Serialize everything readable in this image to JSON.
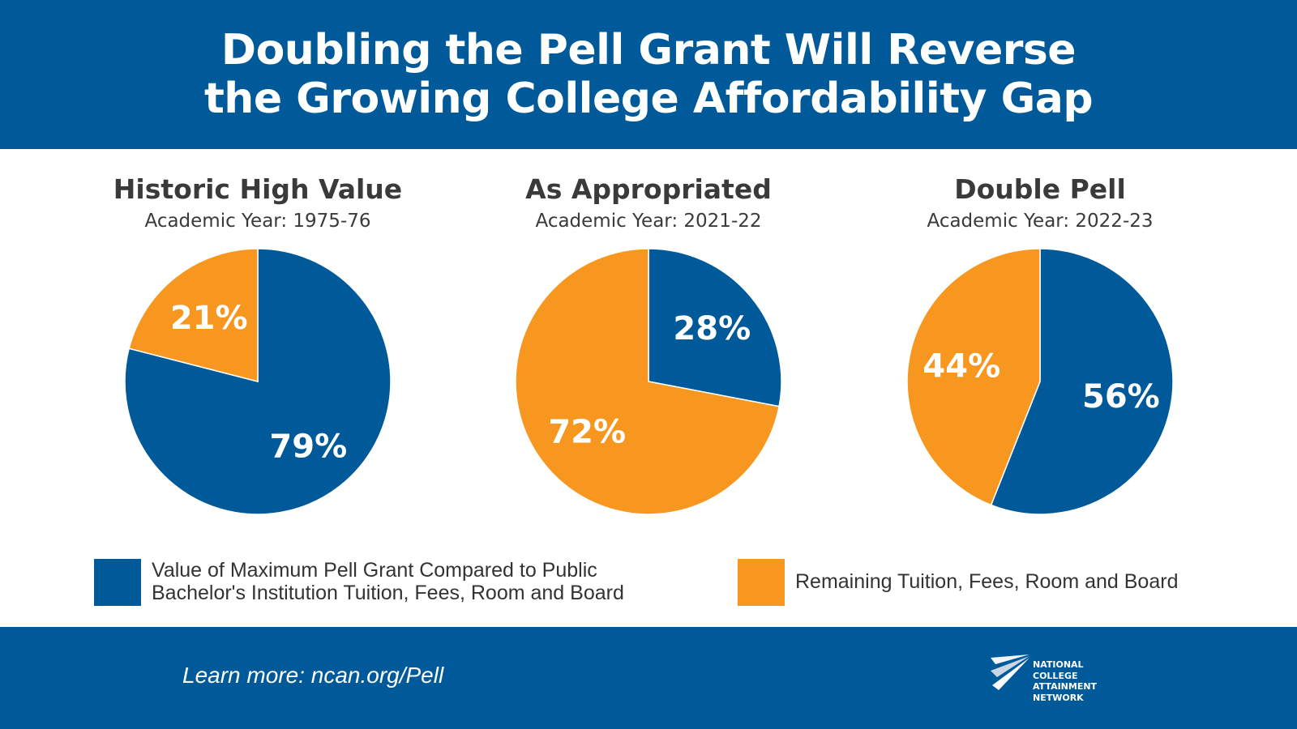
{
  "header": {
    "title_line1": "Doubling the Pell Grant Will Reverse",
    "title_line2": "the Growing College Affordability Gap"
  },
  "colors": {
    "blue": "#005a9a",
    "orange": "#f7971f"
  },
  "chart_data": [
    {
      "type": "pie",
      "title": "Historic High Value",
      "subtitle": "Academic Year: 1975-76",
      "slices": [
        {
          "label": "Value of Maximum Pell Grant Compared to Public Bachelor's Institution Tuition, Fees, Room and Board",
          "value": 79,
          "display": "79%",
          "color": "#005a9a"
        },
        {
          "label": "Remaining Tuition, Fees, Room and Board",
          "value": 21,
          "display": "21%",
          "color": "#f7971f"
        }
      ]
    },
    {
      "type": "pie",
      "title": "As Appropriated",
      "subtitle": "Academic Year: 2021-22",
      "slices": [
        {
          "label": "Value of Maximum Pell Grant Compared to Public Bachelor's Institution Tuition, Fees, Room and Board",
          "value": 28,
          "display": "28%",
          "color": "#005a9a"
        },
        {
          "label": "Remaining Tuition, Fees, Room and Board",
          "value": 72,
          "display": "72%",
          "color": "#f7971f"
        }
      ]
    },
    {
      "type": "pie",
      "title": "Double Pell",
      "subtitle": "Academic Year: 2022-23",
      "slices": [
        {
          "label": "Value of Maximum Pell Grant Compared to Public Bachelor's Institution Tuition, Fees, Room and Board",
          "value": 56,
          "display": "56%",
          "color": "#005a9a"
        },
        {
          "label": "Remaining Tuition, Fees, Room and Board",
          "value": 44,
          "display": "44%",
          "color": "#f7971f"
        }
      ]
    }
  ],
  "legend": {
    "blue_line1": "Value of Maximum Pell Grant Compared to Public",
    "blue_line2": "Bachelor's Institution Tuition, Fees, Room and Board",
    "orange_text": "Remaining Tuition, Fees, Room and Board"
  },
  "footer": {
    "learn_more": "Learn more: ncan.org/Pell",
    "logo_icon": "ncan-logo-mark-icon",
    "logo_lines": [
      "NATIONAL",
      "COLLEGE",
      "ATTAINMENT",
      "NETWORK"
    ]
  }
}
